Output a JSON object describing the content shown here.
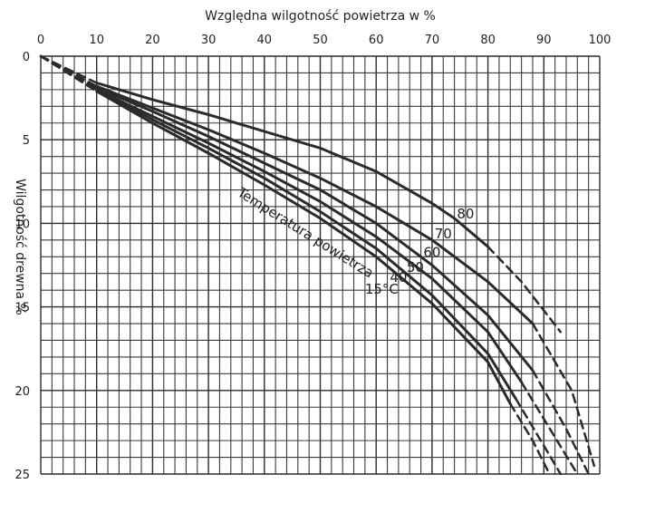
{
  "chart_data": {
    "type": "line",
    "title": "Względna wilgotność powietrza w %",
    "ylabel": "Wilgotność drewna %",
    "annotation": "Temperatura powietrza",
    "x_ticks": [
      "0",
      "10",
      "20",
      "30",
      "40",
      "50",
      "60",
      "70",
      "80",
      "90",
      "100"
    ],
    "y_ticks": [
      "0",
      "5",
      "10",
      "15",
      "20",
      "25"
    ],
    "xlim": [
      0,
      100
    ],
    "ylim": [
      0,
      25
    ],
    "series": [
      {
        "name": "80",
        "x": [
          0,
          10,
          20,
          30,
          40,
          50,
          60,
          70,
          74,
          80,
          86,
          93
        ],
        "y": [
          0,
          1.6,
          2.6,
          3.5,
          4.5,
          5.5,
          6.9,
          8.8,
          9.7,
          11.4,
          13.5,
          16.5
        ]
      },
      {
        "name": "70",
        "x": [
          0,
          10,
          20,
          30,
          40,
          50,
          60,
          70,
          80,
          88,
          95,
          99
        ],
        "y": [
          0,
          1.8,
          3.1,
          4.4,
          5.8,
          7.3,
          9.0,
          11.0,
          13.5,
          16.0,
          20.0,
          24.5
        ]
      },
      {
        "name": "60",
        "x": [
          0,
          10,
          20,
          30,
          40,
          50,
          60,
          70,
          80,
          88,
          94,
          98
        ],
        "y": [
          0,
          1.9,
          3.3,
          4.8,
          6.4,
          8.0,
          10.0,
          12.5,
          15.5,
          18.8,
          22.3,
          25.0
        ]
      },
      {
        "name": "50",
        "x": [
          0,
          10,
          20,
          30,
          40,
          50,
          60,
          70,
          80,
          86,
          92,
          96
        ],
        "y": [
          0,
          2.0,
          3.6,
          5.2,
          6.9,
          8.7,
          10.8,
          13.3,
          16.5,
          19.5,
          22.8,
          25.0
        ]
      },
      {
        "name": "40",
        "x": [
          0,
          10,
          20,
          30,
          40,
          50,
          60,
          70,
          80,
          85,
          90,
          93
        ],
        "y": [
          0,
          2.0,
          3.8,
          5.5,
          7.3,
          9.3,
          11.5,
          14.3,
          17.8,
          20.5,
          23.3,
          25.0
        ]
      },
      {
        "name": "15°C",
        "x": [
          0,
          10,
          20,
          30,
          40,
          50,
          60,
          70,
          80,
          84,
          88,
          91
        ],
        "y": [
          0,
          2.1,
          4.0,
          5.8,
          7.7,
          9.7,
          12.0,
          14.8,
          18.3,
          20.8,
          23.0,
          25.0
        ]
      }
    ],
    "grid": true
  }
}
